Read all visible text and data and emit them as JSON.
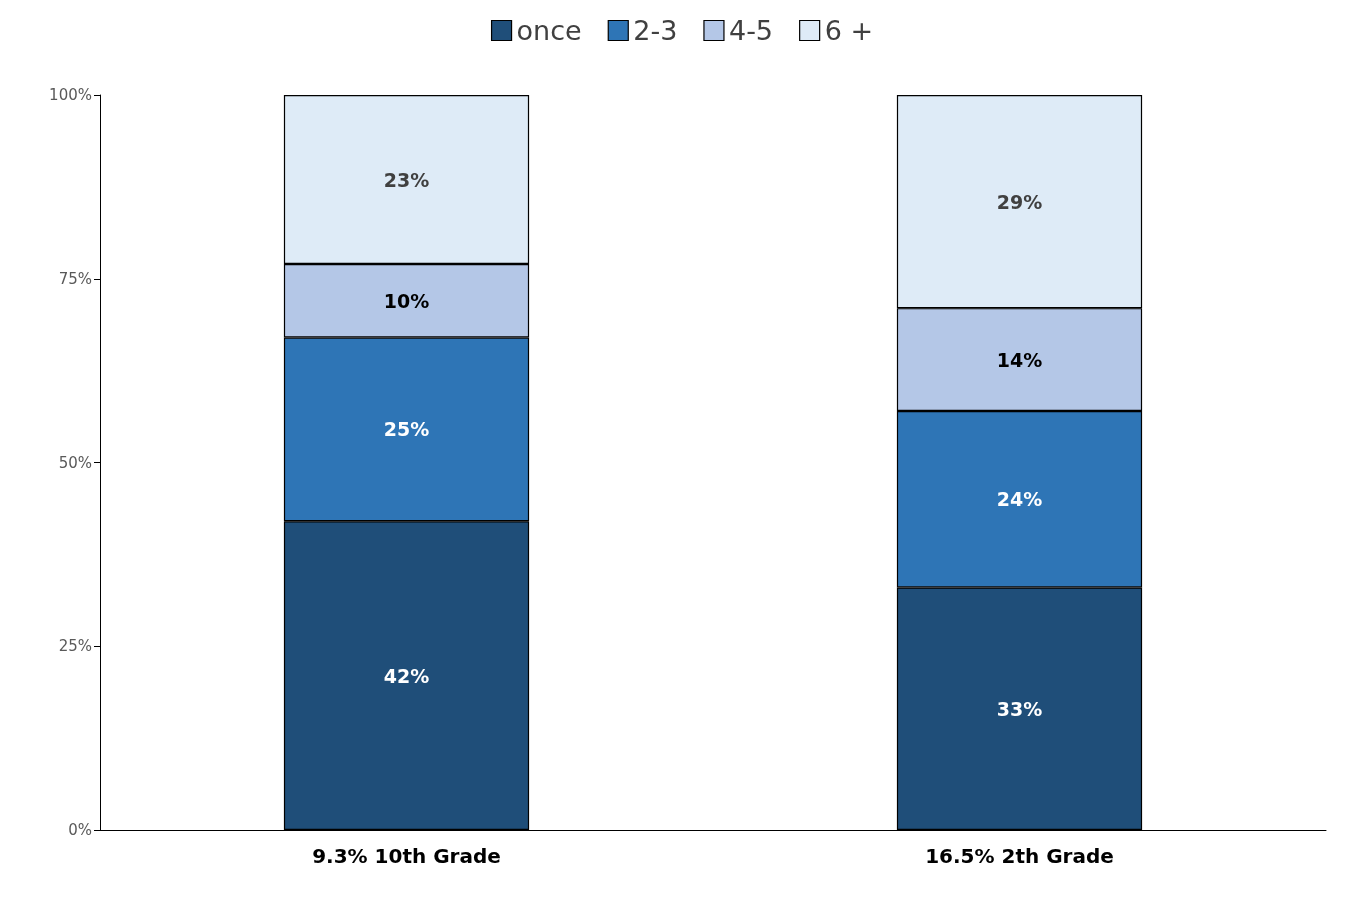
{
  "chart_data": {
    "type": "bar",
    "stacked": true,
    "categories": [
      "9.3% 10th Grade",
      "16.5% 2th Grade"
    ],
    "series": [
      {
        "name": "once",
        "color": "#1f4e79",
        "values": [
          42,
          33
        ],
        "value_labels": [
          "42%",
          "33%"
        ]
      },
      {
        "name": "2-3",
        "color": "#2e75b6",
        "values": [
          25,
          24
        ],
        "value_labels": [
          "25%",
          "24%"
        ]
      },
      {
        "name": "4-5",
        "color": "#b4c7e7",
        "values": [
          10,
          14
        ],
        "value_labels": [
          "10%",
          "14%"
        ]
      },
      {
        "name": "6 +",
        "color": "#deebf7",
        "values": [
          23,
          29
        ],
        "value_labels": [
          "23%",
          "29%"
        ]
      }
    ],
    "ylim": [
      0,
      100
    ],
    "yticks": [
      {
        "value": 0,
        "label": "0%"
      },
      {
        "value": 25,
        "label": "25%"
      },
      {
        "value": 50,
        "label": "50%"
      },
      {
        "value": 75,
        "label": "75%"
      },
      {
        "value": 100,
        "label": "100%"
      }
    ],
    "grid": false,
    "legend": "top"
  }
}
